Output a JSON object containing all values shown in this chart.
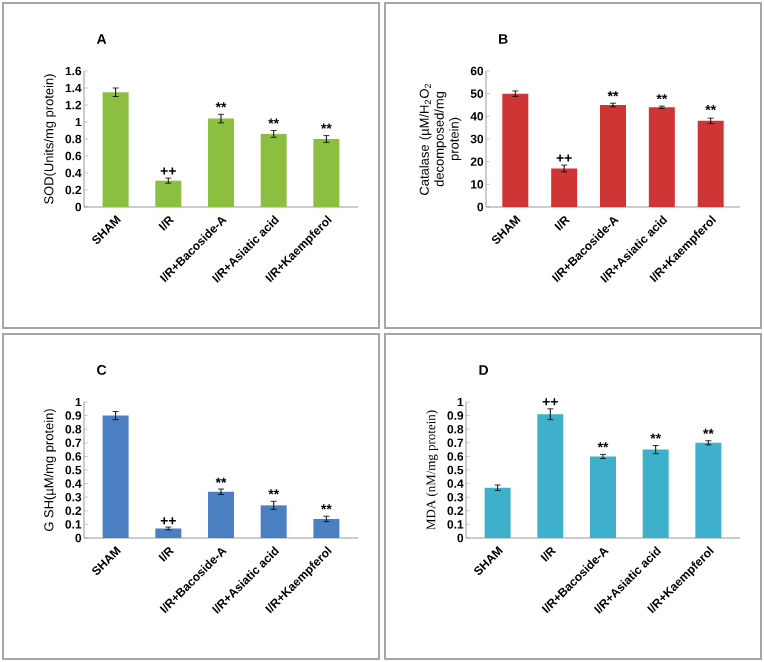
{
  "chart_data": [
    {
      "type": "bar",
      "title": "A",
      "ylabel": "SOD(Units/mg protein)",
      "categories": [
        "SHAM",
        "I/R",
        "I/R+Bacoside-A",
        "I/R+Asiatic acid",
        "I/R+Kaempferol"
      ],
      "values": [
        1.35,
        0.31,
        1.04,
        0.86,
        0.8
      ],
      "errors": [
        0.05,
        0.03,
        0.05,
        0.04,
        0.04
      ],
      "color": "#8cbf3f",
      "ylim": [
        0,
        1.6
      ],
      "yticks": [
        0,
        0.2,
        0.4,
        0.6,
        0.8,
        1,
        1.2,
        1.4,
        1.6
      ],
      "annotations": [
        {
          "text": "++",
          "x": "I/R",
          "y": 0.34
        },
        {
          "text": "**",
          "x": "I/R+Bacoside-A",
          "y": 1.09
        },
        {
          "text": "**",
          "x": "I/R+Asiatic acid",
          "y": 0.9
        },
        {
          "text": "**",
          "x": "I/R+Kaempferol",
          "y": 0.84
        }
      ]
    },
    {
      "type": "bar",
      "title": "B",
      "ylabel": "Catalase (µM/H$_{2}$O$_{2}$ decomposed/mg protein)",
      "categories": [
        "SHAM",
        "I/R",
        "I/R+Bacoside-A",
        "I/R+Asiatic acid",
        "I/R+Kaempferol"
      ],
      "values": [
        50,
        17,
        45,
        44,
        38
      ],
      "errors": [
        1.2,
        1.5,
        0.8,
        0.5,
        1.2
      ],
      "color": "#cf3535",
      "ylim": [
        0,
        60
      ],
      "yticks": [
        0,
        10,
        20,
        30,
        40,
        50,
        60
      ],
      "annotations": [
        {
          "text": "++",
          "x": "I/R",
          "y": 18.5
        },
        {
          "text": "**",
          "x": "I/R+Bacoside-A",
          "y": 45.8
        },
        {
          "text": "**",
          "x": "I/R+Asiatic acid",
          "y": 44.5
        },
        {
          "text": "**",
          "x": "I/R+Kaempferol",
          "y": 39.7
        }
      ]
    },
    {
      "type": "bar",
      "title": "C",
      "ylabel": "G SH(µM/mg protein)",
      "categories": [
        "SHAM",
        "I/R",
        "I/R+Bacoside-A",
        "I/R+Asiatic acid",
        "I/R+Kaempferol"
      ],
      "values": [
        0.9,
        0.07,
        0.34,
        0.24,
        0.14
      ],
      "errors": [
        0.03,
        0.01,
        0.02,
        0.03,
        0.02
      ],
      "color": "#4a7fc1",
      "ylim": [
        0,
        1
      ],
      "yticks": [
        0,
        0.1,
        0.2,
        0.3,
        0.4,
        0.5,
        0.6,
        0.7,
        0.8,
        0.9,
        1
      ],
      "annotations": [
        {
          "text": "++",
          "x": "I/R",
          "y": 0.075
        },
        {
          "text": "**",
          "x": "I/R+Bacoside-A",
          "y": 0.355
        },
        {
          "text": "**",
          "x": "I/R+Asiatic acid",
          "y": 0.27
        },
        {
          "text": "**",
          "x": "I/R+Kaempferol",
          "y": 0.16
        }
      ]
    },
    {
      "type": "bar",
      "title": "D",
      "ylabel": "MDA (nM/mg protein)",
      "categories": [
        "SHAM",
        "I/R",
        "I/R+Bacoside-A",
        "I/R+Asiatic acid",
        "I/R+Kaempferol"
      ],
      "values": [
        0.37,
        0.91,
        0.6,
        0.65,
        0.7
      ],
      "errors": [
        0.02,
        0.04,
        0.015,
        0.03,
        0.015
      ],
      "color": "#3fb0cc",
      "ylim": [
        0,
        1
      ],
      "yticks": [
        0,
        0.1,
        0.2,
        0.3,
        0.4,
        0.5,
        0.6,
        0.7,
        0.8,
        0.9,
        1
      ],
      "annotations": [
        {
          "text": "++",
          "x": "I/R",
          "y": 0.95
        },
        {
          "text": "**",
          "x": "I/R+Bacoside-A",
          "y": 0.615
        },
        {
          "text": "**",
          "x": "I/R+Asiatic acid",
          "y": 0.68
        },
        {
          "text": "**",
          "x": "I/R+Kaempferol",
          "y": 0.715
        }
      ]
    }
  ]
}
